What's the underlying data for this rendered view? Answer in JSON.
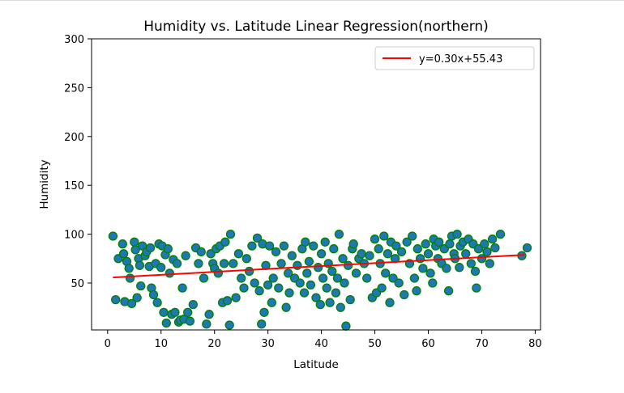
{
  "chart_data": {
    "type": "scatter",
    "title": "Humidity vs. Latitude Linear Regression(northern)",
    "xlabel": "Latitude",
    "ylabel": "Humidity",
    "xlim": [
      -3,
      81
    ],
    "ylim": [
      2,
      300
    ],
    "xticks": [
      0,
      10,
      20,
      30,
      40,
      50,
      60,
      70,
      80
    ],
    "yticks": [
      50,
      100,
      150,
      200,
      250,
      300
    ],
    "grid": false,
    "legend_placement": "top-right",
    "marker_fill": "#1f77b4",
    "marker_edge": "#008000",
    "regression": {
      "label": "y=0.30x+55.43",
      "slope": 0.3,
      "intercept": 55.43,
      "x_range": [
        1,
        78
      ],
      "color": "#ff0000"
    },
    "points": [
      [
        1,
        98
      ],
      [
        1.5,
        33
      ],
      [
        2,
        75
      ],
      [
        2.8,
        90
      ],
      [
        3,
        80
      ],
      [
        3.2,
        31
      ],
      [
        3.6,
        72
      ],
      [
        4,
        65
      ],
      [
        4.2,
        55
      ],
      [
        4.5,
        29
      ],
      [
        5,
        92
      ],
      [
        5.2,
        84
      ],
      [
        5.5,
        35
      ],
      [
        5.8,
        75
      ],
      [
        6,
        68
      ],
      [
        6.2,
        47
      ],
      [
        6.5,
        88
      ],
      [
        7,
        78
      ],
      [
        7.3,
        82
      ],
      [
        7.8,
        67
      ],
      [
        8,
        86
      ],
      [
        8.2,
        45
      ],
      [
        8.6,
        38
      ],
      [
        9,
        70
      ],
      [
        9.3,
        30
      ],
      [
        9.6,
        90
      ],
      [
        10,
        66
      ],
      [
        10.2,
        88
      ],
      [
        10.5,
        20
      ],
      [
        10.8,
        79
      ],
      [
        11,
        9
      ],
      [
        11.3,
        85
      ],
      [
        11.6,
        60
      ],
      [
        12,
        18
      ],
      [
        12.3,
        74
      ],
      [
        12.6,
        20
      ],
      [
        13,
        70
      ],
      [
        13.3,
        10
      ],
      [
        13.6,
        12
      ],
      [
        14,
        45
      ],
      [
        14.3,
        13
      ],
      [
        14.6,
        78
      ],
      [
        15,
        20
      ],
      [
        15.4,
        11
      ],
      [
        16,
        28
      ],
      [
        16.5,
        86
      ],
      [
        17,
        70
      ],
      [
        17.5,
        82
      ],
      [
        18,
        55
      ],
      [
        18.5,
        8
      ],
      [
        19,
        18
      ],
      [
        19.3,
        80
      ],
      [
        19.7,
        70
      ],
      [
        20,
        65
      ],
      [
        20.3,
        85
      ],
      [
        20.7,
        60
      ],
      [
        21,
        88
      ],
      [
        21.5,
        30
      ],
      [
        21.8,
        70
      ],
      [
        22,
        92
      ],
      [
        22.4,
        32
      ],
      [
        22.8,
        7
      ],
      [
        23,
        100
      ],
      [
        23.5,
        70
      ],
      [
        24,
        35
      ],
      [
        24.5,
        80
      ],
      [
        25,
        55
      ],
      [
        25.5,
        45
      ],
      [
        26,
        75
      ],
      [
        26.5,
        62
      ],
      [
        27,
        88
      ],
      [
        27.5,
        50
      ],
      [
        28,
        96
      ],
      [
        28.4,
        42
      ],
      [
        28.8,
        8
      ],
      [
        29,
        90
      ],
      [
        29.3,
        20
      ],
      [
        29.6,
        68
      ],
      [
        30,
        48
      ],
      [
        30.3,
        88
      ],
      [
        30.7,
        30
      ],
      [
        31,
        55
      ],
      [
        31.5,
        82
      ],
      [
        32,
        45
      ],
      [
        32.5,
        70
      ],
      [
        33,
        88
      ],
      [
        33.4,
        25
      ],
      [
        33.8,
        60
      ],
      [
        34,
        40
      ],
      [
        34.5,
        78
      ],
      [
        35,
        55
      ],
      [
        35.5,
        68
      ],
      [
        36,
        50
      ],
      [
        36.4,
        85
      ],
      [
        36.8,
        40
      ],
      [
        37,
        92
      ],
      [
        37.3,
        60
      ],
      [
        37.7,
        72
      ],
      [
        38,
        48
      ],
      [
        38.5,
        88
      ],
      [
        39,
        35
      ],
      [
        39.4,
        66
      ],
      [
        39.8,
        28
      ],
      [
        40,
        80
      ],
      [
        40.3,
        55
      ],
      [
        40.7,
        92
      ],
      [
        41,
        45
      ],
      [
        41.3,
        70
      ],
      [
        41.6,
        30
      ],
      [
        42,
        62
      ],
      [
        42.3,
        85
      ],
      [
        42.7,
        40
      ],
      [
        43,
        55
      ],
      [
        43.3,
        100
      ],
      [
        43.6,
        25
      ],
      [
        44,
        75
      ],
      [
        44.3,
        50
      ],
      [
        44.6,
        6
      ],
      [
        45,
        68
      ],
      [
        45.4,
        33
      ],
      [
        45.8,
        85
      ],
      [
        46,
        90
      ],
      [
        46.5,
        60
      ],
      [
        47,
        75
      ],
      [
        47.5,
        80
      ],
      [
        48,
        70
      ],
      [
        48.5,
        55
      ],
      [
        49,
        78
      ],
      [
        49.5,
        35
      ],
      [
        50,
        95
      ],
      [
        50.3,
        40
      ],
      [
        50.7,
        85
      ],
      [
        51,
        70
      ],
      [
        51.3,
        45
      ],
      [
        51.7,
        98
      ],
      [
        52,
        60
      ],
      [
        52.4,
        80
      ],
      [
        52.8,
        30
      ],
      [
        53,
        92
      ],
      [
        53.4,
        55
      ],
      [
        53.8,
        75
      ],
      [
        54,
        88
      ],
      [
        54.5,
        50
      ],
      [
        55,
        82
      ],
      [
        55.5,
        38
      ],
      [
        56,
        92
      ],
      [
        56.5,
        70
      ],
      [
        57,
        98
      ],
      [
        57.4,
        55
      ],
      [
        57.8,
        42
      ],
      [
        58,
        85
      ],
      [
        58.5,
        75
      ],
      [
        59,
        65
      ],
      [
        59.5,
        90
      ],
      [
        60,
        80
      ],
      [
        60.4,
        60
      ],
      [
        60.8,
        50
      ],
      [
        61,
        95
      ],
      [
        61.4,
        88
      ],
      [
        61.8,
        75
      ],
      [
        62,
        92
      ],
      [
        62.5,
        70
      ],
      [
        63,
        85
      ],
      [
        63.4,
        65
      ],
      [
        63.8,
        42
      ],
      [
        64,
        90
      ],
      [
        64.4,
        98
      ],
      [
        64.8,
        80
      ],
      [
        65,
        75
      ],
      [
        65.4,
        100
      ],
      [
        65.8,
        66
      ],
      [
        66,
        88
      ],
      [
        66.5,
        92
      ],
      [
        67,
        80
      ],
      [
        67.5,
        95
      ],
      [
        68,
        70
      ],
      [
        68.4,
        90
      ],
      [
        68.8,
        62
      ],
      [
        69,
        45
      ],
      [
        69.4,
        85
      ],
      [
        70,
        75
      ],
      [
        70.5,
        90
      ],
      [
        71,
        82
      ],
      [
        71.5,
        70
      ],
      [
        72,
        95
      ],
      [
        72.5,
        86
      ],
      [
        73.5,
        100
      ],
      [
        77.5,
        78
      ],
      [
        78.5,
        86
      ]
    ]
  }
}
